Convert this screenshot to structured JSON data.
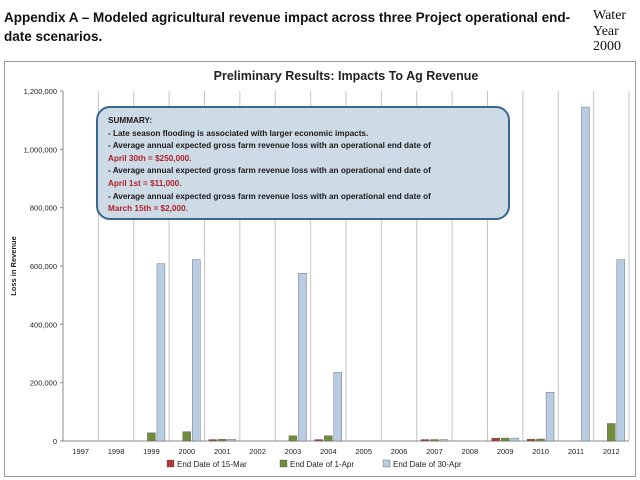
{
  "page": {
    "heading": "Appendix A – Modeled agricultural revenue impact across three Project operational end-date scenarios.",
    "side_note_lines": [
      "Water",
      "Year",
      "2000"
    ]
  },
  "summary": {
    "title": "SUMMARY:",
    "line1": "- Late season flooding is associated with larger economic impacts.",
    "line2": "- Average annual expected gross farm revenue loss with an operational end date of",
    "line2_value": "April 30th = $250,000.",
    "line3": "- Average annual expected gross farm revenue loss with an operational end date of",
    "line3_value": "April 1st = $11,000.",
    "line4": "- Average annual expected gross farm revenue loss with an operational end date of",
    "line4_value": "March 15th = $2,000."
  },
  "chart_data": {
    "type": "bar",
    "title": "Preliminary Results: Impacts To Ag Revenue",
    "xlabel": "",
    "ylabel": "Loss in Revenue",
    "ylim": [
      0,
      1200000
    ],
    "yticks": [
      0,
      200000,
      400000,
      600000,
      800000,
      1000000,
      1200000
    ],
    "ytick_labels": [
      "0",
      "200,000",
      "400,000",
      "600,000",
      "800,000",
      "1,000,000",
      "1,200,000"
    ],
    "grid": "vertical",
    "legend": "bottom",
    "categories": [
      "1997",
      "1998",
      "1999",
      "2000",
      "2001",
      "2002",
      "2003",
      "2004",
      "2005",
      "2006",
      "2007",
      "2008",
      "2009",
      "2010",
      "2011",
      "2012"
    ],
    "series": [
      {
        "name": "End Date of 15-Mar",
        "color": "#b03a36",
        "values": [
          0,
          0,
          0,
          0,
          5000,
          0,
          0,
          5000,
          0,
          0,
          5000,
          0,
          10000,
          6000,
          0,
          0
        ]
      },
      {
        "name": "End Date of 1-Apr",
        "color": "#6e8c3a",
        "values": [
          0,
          0,
          28000,
          32000,
          6000,
          0,
          18000,
          18000,
          0,
          0,
          5000,
          0,
          10000,
          7000,
          0,
          60000
        ]
      },
      {
        "name": "End Date of 30-Apr",
        "color": "#b8cce4",
        "values": [
          0,
          0,
          608000,
          622000,
          6000,
          0,
          575000,
          235000,
          0,
          0,
          5000,
          0,
          10000,
          167000,
          1145000,
          622000
        ]
      }
    ]
  }
}
